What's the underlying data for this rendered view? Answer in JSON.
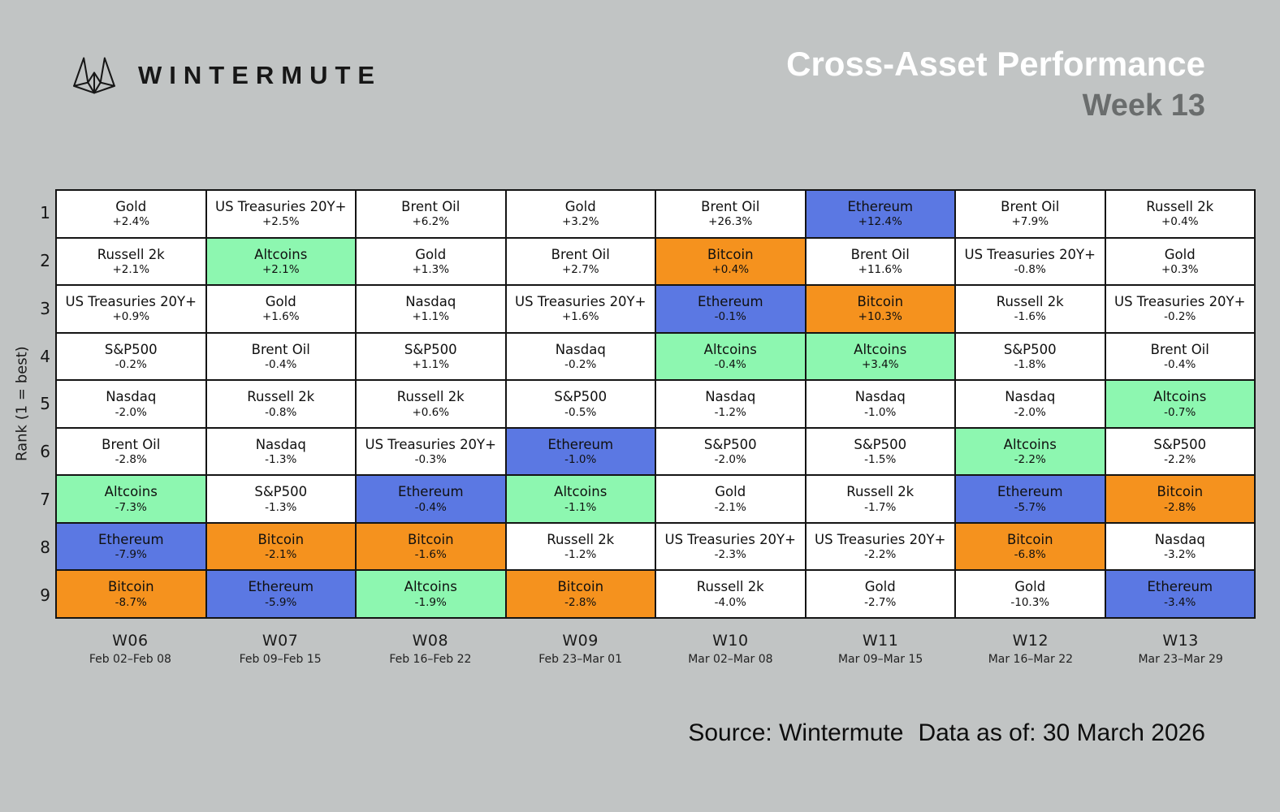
{
  "header": {
    "brand": "WINTERMUTE",
    "title": "Cross-Asset Performance",
    "subtitle": "Week 13"
  },
  "footer": {
    "source": "Source: Wintermute",
    "data_as_of": "Data as of: 30 March 2026"
  },
  "colors": {
    "background": "#c1c4c4",
    "title_text": "#ffffff",
    "subtitle_text": "#6a6d6d",
    "grid_border": "#141414",
    "ethereum": "#5b78e3",
    "bitcoin": "#f5921e",
    "altcoins": "#8df7b0",
    "default_cell": "#ffffff"
  },
  "chart_data": {
    "type": "heatmap",
    "title": "Cross-Asset Performance",
    "subtitle": "Week 13",
    "ylabel": "Rank (1 = best)",
    "ranks": [
      1,
      2,
      3,
      4,
      5,
      6,
      7,
      8,
      9
    ],
    "highlight_colors": {
      "Ethereum": "#5b78e3",
      "Bitcoin": "#f5921e",
      "Altcoins": "#8df7b0",
      "default": "#ffffff"
    },
    "columns": [
      {
        "week": "W06",
        "dates": "Feb 02–Feb 08",
        "cells": [
          {
            "asset": "Gold",
            "value": "+2.4%"
          },
          {
            "asset": "Russell 2k",
            "value": "+2.1%"
          },
          {
            "asset": "US Treasuries 20Y+",
            "value": "+0.9%"
          },
          {
            "asset": "S&P500",
            "value": "-0.2%"
          },
          {
            "asset": "Nasdaq",
            "value": "-2.0%"
          },
          {
            "asset": "Brent Oil",
            "value": "-2.8%"
          },
          {
            "asset": "Altcoins",
            "value": "-7.3%"
          },
          {
            "asset": "Ethereum",
            "value": "-7.9%"
          },
          {
            "asset": "Bitcoin",
            "value": "-8.7%"
          }
        ]
      },
      {
        "week": "W07",
        "dates": "Feb 09–Feb 15",
        "cells": [
          {
            "asset": "US Treasuries 20Y+",
            "value": "+2.5%"
          },
          {
            "asset": "Altcoins",
            "value": "+2.1%"
          },
          {
            "asset": "Gold",
            "value": "+1.6%"
          },
          {
            "asset": "Brent Oil",
            "value": "-0.4%"
          },
          {
            "asset": "Russell 2k",
            "value": "-0.8%"
          },
          {
            "asset": "Nasdaq",
            "value": "-1.3%"
          },
          {
            "asset": "S&P500",
            "value": "-1.3%"
          },
          {
            "asset": "Bitcoin",
            "value": "-2.1%"
          },
          {
            "asset": "Ethereum",
            "value": "-5.9%"
          }
        ]
      },
      {
        "week": "W08",
        "dates": "Feb 16–Feb 22",
        "cells": [
          {
            "asset": "Brent Oil",
            "value": "+6.2%"
          },
          {
            "asset": "Gold",
            "value": "+1.3%"
          },
          {
            "asset": "Nasdaq",
            "value": "+1.1%"
          },
          {
            "asset": "S&P500",
            "value": "+1.1%"
          },
          {
            "asset": "Russell 2k",
            "value": "+0.6%"
          },
          {
            "asset": "US Treasuries 20Y+",
            "value": "-0.3%"
          },
          {
            "asset": "Ethereum",
            "value": "-0.4%"
          },
          {
            "asset": "Bitcoin",
            "value": "-1.6%"
          },
          {
            "asset": "Altcoins",
            "value": "-1.9%"
          }
        ]
      },
      {
        "week": "W09",
        "dates": "Feb 23–Mar 01",
        "cells": [
          {
            "asset": "Gold",
            "value": "+3.2%"
          },
          {
            "asset": "Brent Oil",
            "value": "+2.7%"
          },
          {
            "asset": "US Treasuries 20Y+",
            "value": "+1.6%"
          },
          {
            "asset": "Nasdaq",
            "value": "-0.2%"
          },
          {
            "asset": "S&P500",
            "value": "-0.5%"
          },
          {
            "asset": "Ethereum",
            "value": "-1.0%"
          },
          {
            "asset": "Altcoins",
            "value": "-1.1%"
          },
          {
            "asset": "Russell 2k",
            "value": "-1.2%"
          },
          {
            "asset": "Bitcoin",
            "value": "-2.8%"
          }
        ]
      },
      {
        "week": "W10",
        "dates": "Mar 02–Mar 08",
        "cells": [
          {
            "asset": "Brent Oil",
            "value": "+26.3%"
          },
          {
            "asset": "Bitcoin",
            "value": "+0.4%"
          },
          {
            "asset": "Ethereum",
            "value": "-0.1%"
          },
          {
            "asset": "Altcoins",
            "value": "-0.4%"
          },
          {
            "asset": "Nasdaq",
            "value": "-1.2%"
          },
          {
            "asset": "S&P500",
            "value": "-2.0%"
          },
          {
            "asset": "Gold",
            "value": "-2.1%"
          },
          {
            "asset": "US Treasuries 20Y+",
            "value": "-2.3%"
          },
          {
            "asset": "Russell 2k",
            "value": "-4.0%"
          }
        ]
      },
      {
        "week": "W11",
        "dates": "Mar 09–Mar 15",
        "cells": [
          {
            "asset": "Ethereum",
            "value": "+12.4%"
          },
          {
            "asset": "Brent Oil",
            "value": "+11.6%"
          },
          {
            "asset": "Bitcoin",
            "value": "+10.3%"
          },
          {
            "asset": "Altcoins",
            "value": "+3.4%"
          },
          {
            "asset": "Nasdaq",
            "value": "-1.0%"
          },
          {
            "asset": "S&P500",
            "value": "-1.5%"
          },
          {
            "asset": "Russell 2k",
            "value": "-1.7%"
          },
          {
            "asset": "US Treasuries 20Y+",
            "value": "-2.2%"
          },
          {
            "asset": "Gold",
            "value": "-2.7%"
          }
        ]
      },
      {
        "week": "W12",
        "dates": "Mar 16–Mar 22",
        "cells": [
          {
            "asset": "Brent Oil",
            "value": "+7.9%"
          },
          {
            "asset": "US Treasuries 20Y+",
            "value": "-0.8%"
          },
          {
            "asset": "Russell 2k",
            "value": "-1.6%"
          },
          {
            "asset": "S&P500",
            "value": "-1.8%"
          },
          {
            "asset": "Nasdaq",
            "value": "-2.0%"
          },
          {
            "asset": "Altcoins",
            "value": "-2.2%"
          },
          {
            "asset": "Ethereum",
            "value": "-5.7%"
          },
          {
            "asset": "Bitcoin",
            "value": "-6.8%"
          },
          {
            "asset": "Gold",
            "value": "-10.3%"
          }
        ]
      },
      {
        "week": "W13",
        "dates": "Mar 23–Mar 29",
        "cells": [
          {
            "asset": "Russell 2k",
            "value": "+0.4%"
          },
          {
            "asset": "Gold",
            "value": "+0.3%"
          },
          {
            "asset": "US Treasuries 20Y+",
            "value": "-0.2%"
          },
          {
            "asset": "Brent Oil",
            "value": "-0.4%"
          },
          {
            "asset": "Altcoins",
            "value": "-0.7%"
          },
          {
            "asset": "S&P500",
            "value": "-2.2%"
          },
          {
            "asset": "Bitcoin",
            "value": "-2.8%"
          },
          {
            "asset": "Nasdaq",
            "value": "-3.2%"
          },
          {
            "asset": "Ethereum",
            "value": "-3.4%"
          }
        ]
      }
    ]
  }
}
